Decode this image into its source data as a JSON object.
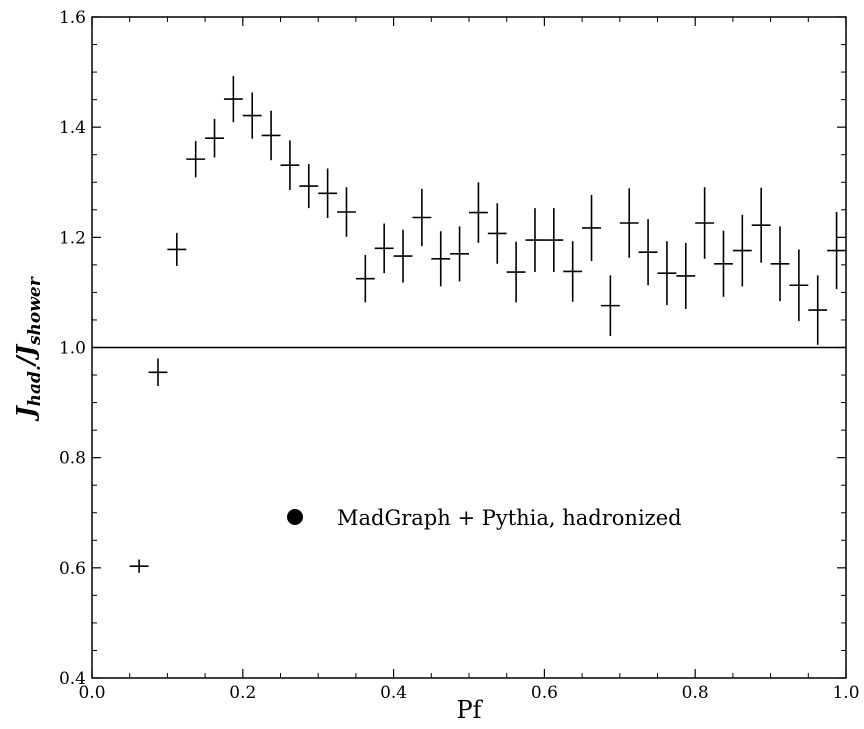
{
  "chart_data": {
    "type": "scatter",
    "xlabel": "Pf",
    "ylabel": {
      "base": "J",
      "sub1": "had.",
      "sep": "/",
      "base2": "J",
      "sub2": "shower"
    },
    "xlim": [
      0.0,
      1.0
    ],
    "ylim": [
      0.4,
      1.6
    ],
    "x_ticks": [
      "0.0",
      "0.2",
      "0.4",
      "0.6",
      "0.8",
      "1.0"
    ],
    "y_ticks": [
      "0.4",
      "0.6",
      "0.8",
      "1.0",
      "1.2",
      "1.4",
      "1.6"
    ],
    "reference_line_y": 1.0,
    "grid": false,
    "legend": {
      "label": "MadGraph + Pythia, hadronized",
      "marker": "filled-circle",
      "position": "center"
    },
    "x_halfwidth": 0.0125,
    "series": [
      {
        "points": [
          {
            "x": 0.0625,
            "y": 0.603,
            "yerr": 0.012
          },
          {
            "x": 0.0875,
            "y": 0.955,
            "yerr": 0.025
          },
          {
            "x": 0.1125,
            "y": 1.178,
            "yerr": 0.03
          },
          {
            "x": 0.1375,
            "y": 1.342,
            "yerr": 0.033
          },
          {
            "x": 0.1625,
            "y": 1.38,
            "yerr": 0.035
          },
          {
            "x": 0.1875,
            "y": 1.451,
            "yerr": 0.042
          },
          {
            "x": 0.2125,
            "y": 1.421,
            "yerr": 0.042
          },
          {
            "x": 0.2375,
            "y": 1.385,
            "yerr": 0.045
          },
          {
            "x": 0.2625,
            "y": 1.331,
            "yerr": 0.045
          },
          {
            "x": 0.2875,
            "y": 1.293,
            "yerr": 0.04
          },
          {
            "x": 0.3125,
            "y": 1.28,
            "yerr": 0.045
          },
          {
            "x": 0.3375,
            "y": 1.246,
            "yerr": 0.045
          },
          {
            "x": 0.3625,
            "y": 1.125,
            "yerr": 0.043
          },
          {
            "x": 0.3875,
            "y": 1.18,
            "yerr": 0.045
          },
          {
            "x": 0.4125,
            "y": 1.166,
            "yerr": 0.048
          },
          {
            "x": 0.4375,
            "y": 1.236,
            "yerr": 0.052
          },
          {
            "x": 0.4625,
            "y": 1.161,
            "yerr": 0.05
          },
          {
            "x": 0.4875,
            "y": 1.17,
            "yerr": 0.05
          },
          {
            "x": 0.5125,
            "y": 1.245,
            "yerr": 0.055
          },
          {
            "x": 0.5375,
            "y": 1.207,
            "yerr": 0.055
          },
          {
            "x": 0.5625,
            "y": 1.137,
            "yerr": 0.055
          },
          {
            "x": 0.5875,
            "y": 1.195,
            "yerr": 0.058
          },
          {
            "x": 0.6125,
            "y": 1.195,
            "yerr": 0.058
          },
          {
            "x": 0.6375,
            "y": 1.138,
            "yerr": 0.055
          },
          {
            "x": 0.6625,
            "y": 1.217,
            "yerr": 0.06
          },
          {
            "x": 0.6875,
            "y": 1.076,
            "yerr": 0.055
          },
          {
            "x": 0.7125,
            "y": 1.226,
            "yerr": 0.063
          },
          {
            "x": 0.7375,
            "y": 1.173,
            "yerr": 0.06
          },
          {
            "x": 0.7625,
            "y": 1.135,
            "yerr": 0.058
          },
          {
            "x": 0.7875,
            "y": 1.13,
            "yerr": 0.06
          },
          {
            "x": 0.8125,
            "y": 1.226,
            "yerr": 0.065
          },
          {
            "x": 0.8375,
            "y": 1.152,
            "yerr": 0.06
          },
          {
            "x": 0.8625,
            "y": 1.176,
            "yerr": 0.065
          },
          {
            "x": 0.8875,
            "y": 1.222,
            "yerr": 0.068
          },
          {
            "x": 0.9125,
            "y": 1.152,
            "yerr": 0.068
          },
          {
            "x": 0.9375,
            "y": 1.113,
            "yerr": 0.065
          },
          {
            "x": 0.9625,
            "y": 1.068,
            "yerr": 0.063
          },
          {
            "x": 0.9875,
            "y": 1.176,
            "yerr": 0.07
          }
        ]
      }
    ]
  }
}
